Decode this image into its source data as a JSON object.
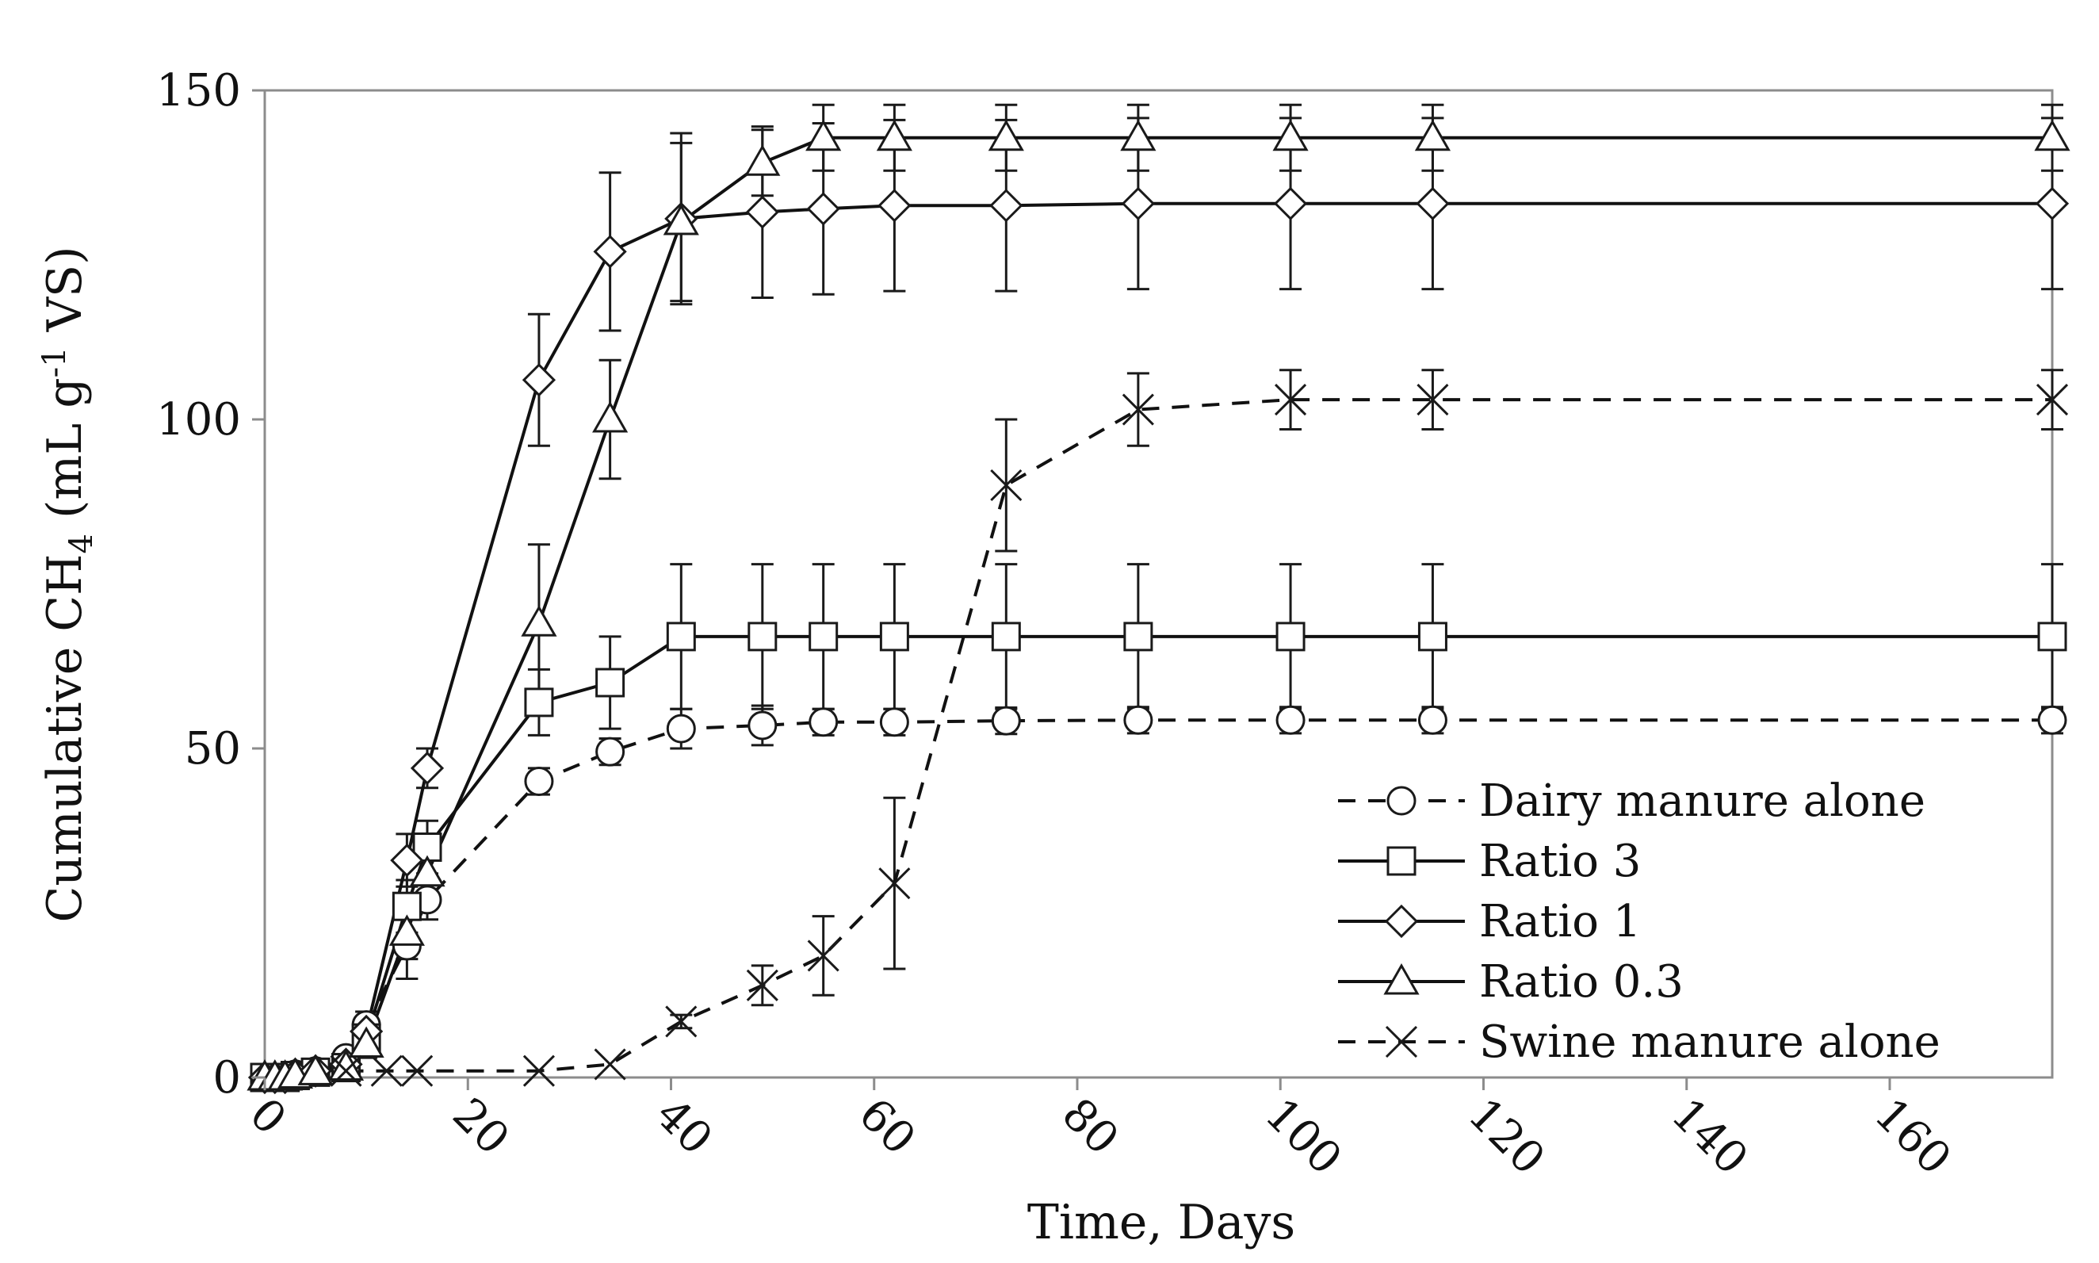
{
  "chart_data": {
    "type": "line",
    "title": "",
    "xlabel": "Time, Days",
    "ylabel": "Cumulative CH4 (mL g-1 VS)",
    "ylabel_parts": {
      "pre": "Cumulative CH",
      "sub": "4",
      "mid": " (mL g",
      "sup": "-1",
      "post": " VS)"
    },
    "xlim": [
      0,
      176
    ],
    "ylim": [
      0,
      150
    ],
    "x_ticks": [
      "0",
      "20",
      "40",
      "60",
      "80",
      "100",
      "120",
      "140",
      "160"
    ],
    "y_ticks": [
      "0",
      "50",
      "100",
      "150"
    ],
    "grid": false,
    "legend_position": "bottom-right",
    "series": [
      {
        "name": "Dairy manure alone",
        "marker": "circle",
        "dash": "dashed",
        "x": [
          0,
          1,
          2,
          3,
          5,
          8,
          10,
          14,
          16,
          27,
          34,
          41,
          49,
          55,
          62,
          73,
          86,
          101,
          115,
          176
        ],
        "y": [
          0,
          0,
          0,
          0.5,
          1,
          3,
          8,
          20,
          27,
          45,
          49.5,
          53,
          53.5,
          54,
          54,
          54.2,
          54.3,
          54.3,
          54.3,
          54.3
        ],
        "err": [
          0,
          0,
          0,
          0,
          0,
          0,
          2,
          5,
          3,
          2,
          2,
          3,
          3,
          2,
          2,
          2,
          2,
          2,
          2,
          2
        ]
      },
      {
        "name": "Ratio 3",
        "marker": "square",
        "dash": "solid",
        "x": [
          0,
          1,
          2,
          3,
          5,
          8,
          10,
          14,
          16,
          27,
          34,
          41,
          49,
          55,
          62,
          73,
          86,
          101,
          115,
          176
        ],
        "y": [
          0,
          0,
          0,
          0.3,
          0.8,
          1.5,
          6,
          26,
          35,
          57,
          60,
          67,
          67,
          67,
          67,
          67,
          67,
          67,
          67,
          67
        ],
        "err": [
          0,
          0,
          0,
          0,
          0,
          0,
          2,
          4,
          4,
          5,
          7,
          11,
          11,
          11,
          11,
          11,
          11,
          11,
          11,
          11
        ]
      },
      {
        "name": "Ratio 1",
        "marker": "diamond",
        "dash": "solid",
        "x": [
          0,
          1,
          2,
          3,
          5,
          8,
          10,
          14,
          16,
          27,
          34,
          41,
          49,
          55,
          62,
          73,
          86,
          101,
          115,
          176
        ],
        "y": [
          0,
          0,
          0,
          0.5,
          1,
          2,
          7,
          33,
          47,
          106,
          125.5,
          130.5,
          131.5,
          132,
          132.5,
          132.5,
          132.8,
          132.8,
          132.8,
          132.8
        ],
        "err": [
          0,
          0,
          0,
          0,
          0,
          0,
          2,
          4,
          3,
          10,
          12,
          13,
          13,
          13,
          13,
          13,
          13,
          13,
          13,
          13
        ]
      },
      {
        "name": "Ratio 0.3",
        "marker": "triangle",
        "dash": "solid",
        "x": [
          0,
          1,
          2,
          3,
          5,
          8,
          10,
          14,
          16,
          27,
          34,
          41,
          49,
          55,
          62,
          73,
          86,
          101,
          115,
          176
        ],
        "y": [
          0,
          0,
          0,
          0.3,
          0.8,
          1.5,
          5,
          22,
          31,
          69,
          100,
          130,
          139,
          142.8,
          142.8,
          142.8,
          142.8,
          142.8,
          142.8,
          142.8
        ],
        "err": [
          0,
          0,
          0,
          0,
          0,
          0,
          2,
          4,
          3,
          12,
          9,
          12,
          5,
          5,
          5,
          5,
          5,
          5,
          5,
          5
        ]
      },
      {
        "name": "Swine manure alone",
        "marker": "x",
        "dash": "dashed",
        "x": [
          8,
          12,
          15,
          27,
          34,
          41,
          49,
          55,
          62,
          73,
          86,
          101,
          115,
          176
        ],
        "y": [
          1,
          1,
          1,
          1,
          2,
          8.5,
          14,
          18.5,
          29.5,
          90,
          101.5,
          103,
          103,
          103
        ],
        "err": [
          0,
          0,
          0,
          0,
          0,
          1,
          3,
          6,
          13,
          10,
          5.5,
          4.5,
          4.5,
          4.5
        ]
      }
    ]
  }
}
